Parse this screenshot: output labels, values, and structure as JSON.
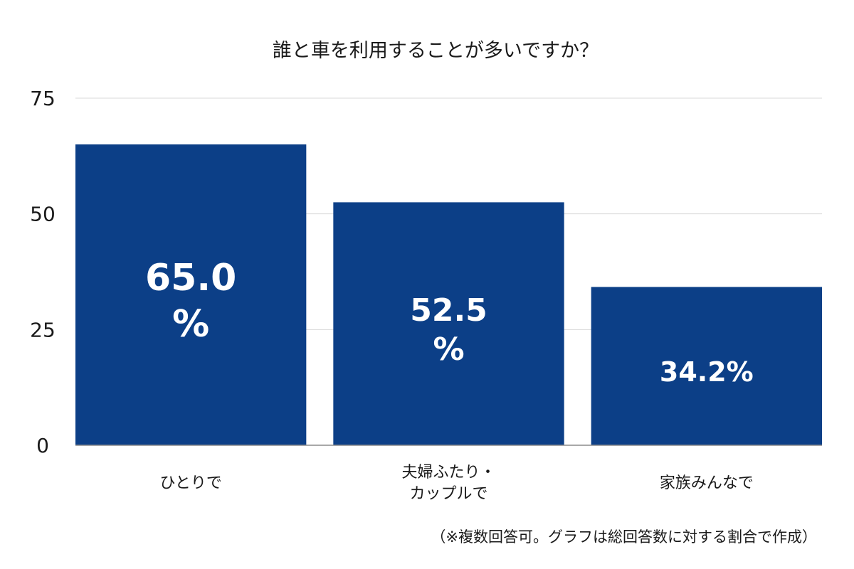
{
  "chart_data": {
    "type": "bar",
    "title": "誰と車を利用することが多いですか？",
    "categories": [
      [
        "ひとりで"
      ],
      [
        "夫婦ふたり・",
        "カップルで"
      ],
      [
        "家族みんなで"
      ]
    ],
    "values": [
      65.0,
      52.5,
      34.2
    ],
    "data_labels": [
      [
        "65.0",
        "%"
      ],
      [
        "52.5",
        "%"
      ],
      [
        "34.2%"
      ]
    ],
    "yticks": [
      "0",
      "25",
      "50",
      "75"
    ],
    "ylim": [
      0,
      75
    ],
    "grid": true,
    "legend": "none",
    "bar_color": "#0c3f87",
    "footnote": "（※複数回答可。グラフは総回答数に対する割合で作成）"
  }
}
